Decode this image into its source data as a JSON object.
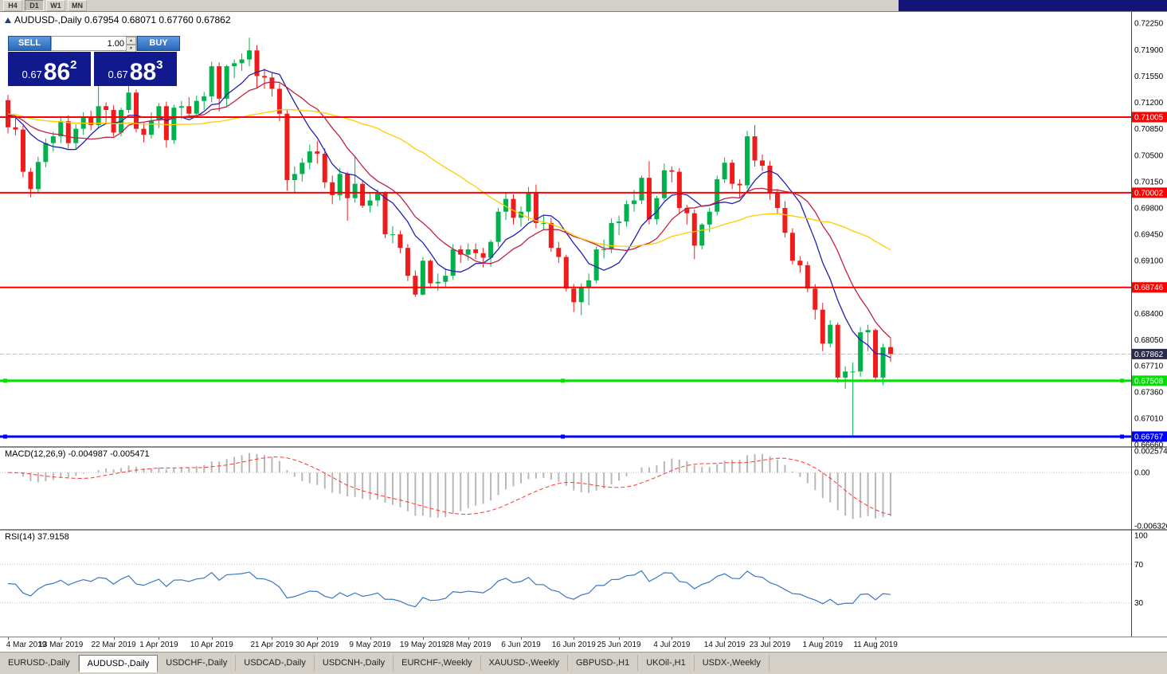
{
  "toolbar": {
    "timeframes": [
      {
        "label": "H4",
        "active": false
      },
      {
        "label": "D1",
        "active": true
      },
      {
        "label": "W1",
        "active": false
      },
      {
        "label": "MN",
        "active": false
      }
    ]
  },
  "chart": {
    "title": "AUDUSD-,Daily  0.67954 0.68071 0.67760 0.67862",
    "trade_panel": {
      "sell_label": "SELL",
      "buy_label": "BUY",
      "volume": "1.00",
      "sell_price": {
        "small": "0.67",
        "big": "86",
        "sup": "2"
      },
      "buy_price": {
        "small": "0.67",
        "big": "88",
        "sup": "3"
      }
    }
  },
  "colors": {
    "bull": "#00b14c",
    "bear": "#ef1c1c",
    "macd_hist": "#b8b8b8",
    "macd_signal": "#ff3333",
    "rsi": "#3a77c2",
    "current_label_bg": "#2b2b4e"
  },
  "chart_data": {
    "type": "candlestick",
    "symbol": "AUDUSD-",
    "period": "Daily",
    "price_axis": {
      "max": 0.724,
      "min": 0.6664,
      "ticks": [
        "0.72250",
        "0.71900",
        "0.71550",
        "0.71200",
        "0.70850",
        "0.70500",
        "0.70150",
        "0.69800",
        "0.69450",
        "0.69100",
        "0.68750",
        "0.68400",
        "0.68050",
        "0.67710",
        "0.67360",
        "0.67010",
        "0.66660"
      ]
    },
    "current_price": {
      "value": 0.67862,
      "label": "0.67862"
    },
    "hlines": [
      {
        "price": 0.71005,
        "label": "0.71005",
        "color": "#ff0000",
        "width": 2,
        "handles": false
      },
      {
        "price": 0.70002,
        "label": "0.70002",
        "color": "#ff0000",
        "width": 2,
        "handles": false
      },
      {
        "price": 0.68746,
        "label": "0.68746",
        "color": "#ff0000",
        "width": 2,
        "handles": false
      },
      {
        "price": 0.67508,
        "label": "0.67508",
        "color": "#00e100",
        "width": 3,
        "handles": true
      },
      {
        "price": 0.66767,
        "label": "0.66767",
        "color": "#0000ff",
        "width": 3,
        "handles": true
      }
    ],
    "moving_averages": [
      {
        "name": "fast-ma",
        "period": 8,
        "color": "#2020b0"
      },
      {
        "name": "mid-ma",
        "period": 13,
        "color": "#c02040"
      },
      {
        "name": "slow-ma",
        "period": 34,
        "color": "#ffcc00"
      }
    ],
    "indicators": {
      "macd": {
        "title": "MACD(12,26,9) -0.004987 -0.005471",
        "fast": 12,
        "slow": 26,
        "signal": 9,
        "scale": [
          {
            "label": "0.002574",
            "value": 0.002574
          },
          {
            "label": "0.00",
            "value": 0
          },
          {
            "label": "-0.006326",
            "value": -0.006326
          }
        ]
      },
      "rsi": {
        "title": "RSI(14) 37.9158",
        "period": 14,
        "levels": [
          70,
          30
        ],
        "scale": [
          {
            "label": "100",
            "value": 100
          },
          {
            "label": "70",
            "value": 70
          },
          {
            "label": "30",
            "value": 30
          }
        ]
      }
    },
    "date_labels": [
      {
        "label": "4 Mar 2019",
        "i": 0
      },
      {
        "label": "13 Mar 2019",
        "i": 7
      },
      {
        "label": "22 Mar 2019",
        "i": 14
      },
      {
        "label": "1 Apr 2019",
        "i": 20
      },
      {
        "label": "10 Apr 2019",
        "i": 27
      },
      {
        "label": "21 Apr 2019",
        "i": 35
      },
      {
        "label": "30 Apr 2019",
        "i": 41
      },
      {
        "label": "9 May 2019",
        "i": 48
      },
      {
        "label": "19 May 2019",
        "i": 55
      },
      {
        "label": "28 May 2019",
        "i": 61
      },
      {
        "label": "6 Jun 2019",
        "i": 68
      },
      {
        "label": "16 Jun 2019",
        "i": 75
      },
      {
        "label": "25 Jun 2019",
        "i": 81
      },
      {
        "label": "4 Jul 2019",
        "i": 88
      },
      {
        "label": "14 Jul 2019",
        "i": 95
      },
      {
        "label": "23 Jul 2019",
        "i": 101
      },
      {
        "label": "1 Aug 2019",
        "i": 108
      },
      {
        "label": "11 Aug 2019",
        "i": 115
      }
    ],
    "candles": [
      [
        0.7123,
        0.713,
        0.7079,
        0.7087
      ],
      [
        0.7087,
        0.71,
        0.7076,
        0.7084
      ],
      [
        0.7084,
        0.7089,
        0.7021,
        0.7028
      ],
      [
        0.7028,
        0.7033,
        0.6994,
        0.7005
      ],
      [
        0.7005,
        0.7048,
        0.7,
        0.7041
      ],
      [
        0.7041,
        0.7072,
        0.7034,
        0.7066
      ],
      [
        0.7066,
        0.7081,
        0.7055,
        0.7075
      ],
      [
        0.7075,
        0.71,
        0.7066,
        0.7095
      ],
      [
        0.7095,
        0.7103,
        0.7059,
        0.7066
      ],
      [
        0.7066,
        0.7091,
        0.7058,
        0.7085
      ],
      [
        0.7085,
        0.7107,
        0.7077,
        0.71
      ],
      [
        0.71,
        0.7109,
        0.7083,
        0.709
      ],
      [
        0.709,
        0.7168,
        0.7085,
        0.7115
      ],
      [
        0.7115,
        0.712,
        0.7093,
        0.711
      ],
      [
        0.711,
        0.7116,
        0.7075,
        0.708
      ],
      [
        0.708,
        0.7113,
        0.7075,
        0.711
      ],
      [
        0.711,
        0.7147,
        0.7106,
        0.7133
      ],
      [
        0.7133,
        0.7137,
        0.708,
        0.7085
      ],
      [
        0.7085,
        0.7093,
        0.7067,
        0.7077
      ],
      [
        0.7077,
        0.7107,
        0.7072,
        0.7096
      ],
      [
        0.7096,
        0.7119,
        0.7086,
        0.7115
      ],
      [
        0.7115,
        0.7121,
        0.706,
        0.707
      ],
      [
        0.707,
        0.7117,
        0.7065,
        0.7113
      ],
      [
        0.7113,
        0.7122,
        0.7098,
        0.7115
      ],
      [
        0.7115,
        0.7127,
        0.71,
        0.7105
      ],
      [
        0.7105,
        0.7129,
        0.7101,
        0.7122
      ],
      [
        0.7122,
        0.7134,
        0.711,
        0.7128
      ],
      [
        0.7128,
        0.7174,
        0.712,
        0.7168
      ],
      [
        0.7168,
        0.7173,
        0.7108,
        0.7125
      ],
      [
        0.7125,
        0.717,
        0.7115,
        0.7168
      ],
      [
        0.7168,
        0.7177,
        0.7152,
        0.7172
      ],
      [
        0.7172,
        0.7185,
        0.7162,
        0.7177
      ],
      [
        0.7177,
        0.7206,
        0.7168,
        0.7189
      ],
      [
        0.7189,
        0.7196,
        0.714,
        0.7155
      ],
      [
        0.7155,
        0.7165,
        0.7138,
        0.7153
      ],
      [
        0.7153,
        0.7159,
        0.7128,
        0.7138
      ],
      [
        0.7138,
        0.7145,
        0.7095,
        0.7105
      ],
      [
        0.7105,
        0.711,
        0.7003,
        0.7017
      ],
      [
        0.7017,
        0.7035,
        0.7,
        0.7025
      ],
      [
        0.7025,
        0.7046,
        0.7015,
        0.704
      ],
      [
        0.704,
        0.7064,
        0.7031,
        0.7055
      ],
      [
        0.7055,
        0.7069,
        0.7039,
        0.7052
      ],
      [
        0.7052,
        0.7059,
        0.7006,
        0.7014
      ],
      [
        0.7014,
        0.7023,
        0.6985,
        0.6997
      ],
      [
        0.6997,
        0.7033,
        0.699,
        0.7025
      ],
      [
        0.7025,
        0.7028,
        0.6963,
        0.6993
      ],
      [
        0.6993,
        0.7048,
        0.6987,
        0.7012
      ],
      [
        0.7012,
        0.7016,
        0.698,
        0.6983
      ],
      [
        0.6983,
        0.7001,
        0.6974,
        0.699
      ],
      [
        0.699,
        0.7005,
        0.6982,
        0.7
      ],
      [
        0.7,
        0.7002,
        0.694,
        0.6945
      ],
      [
        0.6945,
        0.6956,
        0.6933,
        0.6945
      ],
      [
        0.6945,
        0.695,
        0.692,
        0.6927
      ],
      [
        0.6927,
        0.6932,
        0.6883,
        0.689
      ],
      [
        0.689,
        0.6897,
        0.6862,
        0.6865
      ],
      [
        0.6865,
        0.6915,
        0.6864,
        0.691
      ],
      [
        0.691,
        0.6912,
        0.6876,
        0.688
      ],
      [
        0.688,
        0.6893,
        0.687,
        0.6882
      ],
      [
        0.6882,
        0.69,
        0.6875,
        0.689
      ],
      [
        0.689,
        0.6932,
        0.6885,
        0.6925
      ],
      [
        0.6925,
        0.693,
        0.6907,
        0.6918
      ],
      [
        0.6918,
        0.6933,
        0.691,
        0.6925
      ],
      [
        0.6925,
        0.6933,
        0.6912,
        0.692
      ],
      [
        0.692,
        0.6927,
        0.6901,
        0.6914
      ],
      [
        0.6914,
        0.6938,
        0.6902,
        0.6935
      ],
      [
        0.6935,
        0.698,
        0.6928,
        0.6975
      ],
      [
        0.6975,
        0.7,
        0.6964,
        0.6992
      ],
      [
        0.6992,
        0.6998,
        0.6958,
        0.6967
      ],
      [
        0.6967,
        0.6982,
        0.6955,
        0.6975
      ],
      [
        0.6975,
        0.7008,
        0.6963,
        0.7
      ],
      [
        0.7,
        0.7011,
        0.6953,
        0.696
      ],
      [
        0.696,
        0.697,
        0.6951,
        0.696
      ],
      [
        0.696,
        0.6967,
        0.6922,
        0.6927
      ],
      [
        0.6927,
        0.6935,
        0.6907,
        0.6915
      ],
      [
        0.6915,
        0.6918,
        0.6869,
        0.6873
      ],
      [
        0.6873,
        0.6879,
        0.6842,
        0.6855
      ],
      [
        0.6855,
        0.688,
        0.6838,
        0.6875
      ],
      [
        0.6875,
        0.6893,
        0.6851,
        0.6884
      ],
      [
        0.6884,
        0.6929,
        0.688,
        0.6925
      ],
      [
        0.6925,
        0.6938,
        0.6913,
        0.6925
      ],
      [
        0.6925,
        0.6966,
        0.692,
        0.696
      ],
      [
        0.696,
        0.697,
        0.6944,
        0.6962
      ],
      [
        0.6962,
        0.699,
        0.6955,
        0.6985
      ],
      [
        0.6985,
        0.7004,
        0.6975,
        0.699
      ],
      [
        0.699,
        0.7023,
        0.6985,
        0.702
      ],
      [
        0.702,
        0.7042,
        0.6958,
        0.6965
      ],
      [
        0.6965,
        0.6996,
        0.6958,
        0.6993
      ],
      [
        0.6993,
        0.7039,
        0.699,
        0.703
      ],
      [
        0.703,
        0.7035,
        0.7014,
        0.7028
      ],
      [
        0.7028,
        0.7033,
        0.6972,
        0.698
      ],
      [
        0.698,
        0.6984,
        0.6958,
        0.6973
      ],
      [
        0.6973,
        0.6978,
        0.6912,
        0.693
      ],
      [
        0.693,
        0.696,
        0.6925,
        0.6958
      ],
      [
        0.6958,
        0.698,
        0.6948,
        0.6975
      ],
      [
        0.6975,
        0.7023,
        0.697,
        0.7018
      ],
      [
        0.7018,
        0.7047,
        0.7013,
        0.704
      ],
      [
        0.704,
        0.7044,
        0.7005,
        0.7012
      ],
      [
        0.7012,
        0.7018,
        0.6994,
        0.701
      ],
      [
        0.701,
        0.7082,
        0.7005,
        0.7075
      ],
      [
        0.7075,
        0.709,
        0.7035,
        0.7043
      ],
      [
        0.7043,
        0.7051,
        0.7029,
        0.7036
      ],
      [
        0.7036,
        0.7042,
        0.6991,
        0.7
      ],
      [
        0.7,
        0.7005,
        0.6973,
        0.698
      ],
      [
        0.698,
        0.6989,
        0.6941,
        0.6947
      ],
      [
        0.6947,
        0.6953,
        0.6905,
        0.691
      ],
      [
        0.691,
        0.6916,
        0.6894,
        0.6904
      ],
      [
        0.6904,
        0.6909,
        0.6868,
        0.6873
      ],
      [
        0.6873,
        0.6879,
        0.6832,
        0.6845
      ],
      [
        0.6845,
        0.6854,
        0.679,
        0.68
      ],
      [
        0.68,
        0.6831,
        0.6795,
        0.6825
      ],
      [
        0.6825,
        0.6828,
        0.6748,
        0.6755
      ],
      [
        0.6755,
        0.677,
        0.674,
        0.6763
      ],
      [
        0.6763,
        0.6775,
        0.6677,
        0.6763
      ],
      [
        0.6763,
        0.6822,
        0.6756,
        0.6815
      ],
      [
        0.6815,
        0.6825,
        0.679,
        0.6818
      ],
      [
        0.6818,
        0.682,
        0.6749,
        0.6755
      ],
      [
        0.6755,
        0.68,
        0.6745,
        0.6795
      ],
      [
        0.67954,
        0.68071,
        0.6776,
        0.67862
      ]
    ]
  },
  "tabs": [
    {
      "label": "EURUSD-,Daily",
      "active": false
    },
    {
      "label": "AUDUSD-,Daily",
      "active": true
    },
    {
      "label": "USDCHF-,Daily",
      "active": false
    },
    {
      "label": "USDCAD-,Daily",
      "active": false
    },
    {
      "label": "USDCNH-,Daily",
      "active": false
    },
    {
      "label": "EURCHF-,Weekly",
      "active": false
    },
    {
      "label": "XAUUSD-,Weekly",
      "active": false
    },
    {
      "label": "GBPUSD-,H1",
      "active": false
    },
    {
      "label": "UKOil-,H1",
      "active": false
    },
    {
      "label": "USDX-,Weekly",
      "active": false
    }
  ]
}
